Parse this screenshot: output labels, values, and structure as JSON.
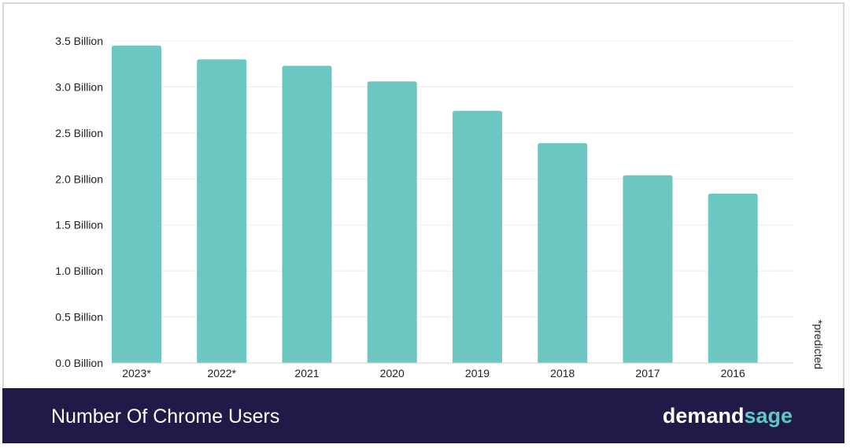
{
  "chart_data": {
    "type": "bar",
    "categories": [
      "2023*",
      "2022*",
      "2021",
      "2020",
      "2019",
      "2018",
      "2017",
      "2016"
    ],
    "values": [
      3.45,
      3.3,
      3.23,
      3.06,
      2.74,
      2.39,
      2.04,
      1.84
    ],
    "ylim": [
      0,
      3.5
    ],
    "yticks": [
      {
        "value": 0,
        "label": "0.0 Billion"
      },
      {
        "value": 0.5,
        "label": "0.5 Billion"
      },
      {
        "value": 1.0,
        "label": "1.0 Billion"
      },
      {
        "value": 1.5,
        "label": "1.5 Billion"
      },
      {
        "value": 2.0,
        "label": "2.0 Billion"
      },
      {
        "value": 2.5,
        "label": "2.5 Billion"
      },
      {
        "value": 3.0,
        "label": "3.0 Billion"
      },
      {
        "value": 3.5,
        "label": "3.5 Billion"
      }
    ],
    "grid": true,
    "bar_color": "#6cc7c2",
    "footnote": "*predicted"
  },
  "footer": {
    "title": "Number Of Chrome Users",
    "brand_part1": "demand",
    "brand_part2": "sage",
    "background": "#1f1a48"
  }
}
